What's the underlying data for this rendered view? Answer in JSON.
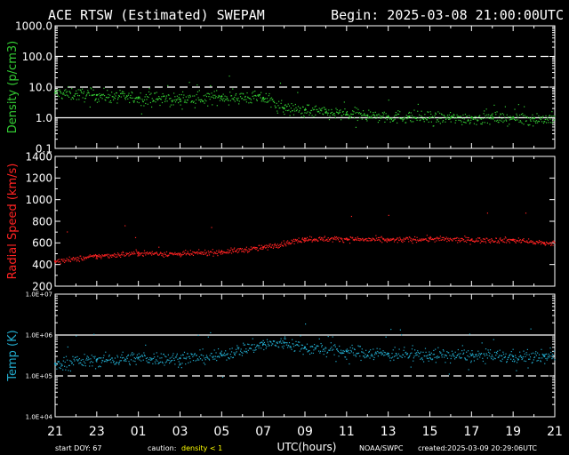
{
  "header": {
    "title": "ACE RTSW (Estimated) SWEPAM",
    "begin": "Begin: 2025-03-08 21:00:00UTC"
  },
  "footer": {
    "start_doy": "start DOY:  67",
    "caution_label": "caution:",
    "caution_value": "density < 1",
    "xlabel": "UTC(hours)",
    "credit": "NOAA/SWPC",
    "created": "created:2025-03-09 20:29:06UTC"
  },
  "colors": {
    "density": "#33cc33",
    "speed": "#ff2222",
    "temp": "#22aacc",
    "caution": "#ffff00"
  },
  "chart_data": [
    {
      "type": "scatter",
      "ylabel": "Density (p/cm3)",
      "yscale": "log",
      "ylim": [
        0.1,
        1000
      ],
      "yticks": [
        "0.1",
        "1.0",
        "10.0",
        "100.0",
        "1000.0"
      ],
      "reference_lines": [
        {
          "y": 1,
          "style": "solid"
        },
        {
          "y": 10,
          "style": "dashed"
        },
        {
          "y": 100,
          "style": "dashed"
        }
      ],
      "x_unit": "hours since 21:00 UTC",
      "points": [
        [
          0,
          6.5
        ],
        [
          2,
          5.5
        ],
        [
          4,
          4.5
        ],
        [
          6,
          4.0
        ],
        [
          8,
          5.0
        ],
        [
          10,
          4.5
        ],
        [
          11,
          2.0
        ],
        [
          12,
          1.8
        ],
        [
          13,
          1.5
        ],
        [
          14,
          1.3
        ],
        [
          15,
          1.2
        ],
        [
          16,
          1.1
        ],
        [
          17,
          1.1
        ],
        [
          18,
          1.0
        ],
        [
          19,
          1.0
        ],
        [
          20,
          1.0
        ],
        [
          21,
          1.0
        ],
        [
          22,
          1.0
        ],
        [
          23,
          0.95
        ]
      ]
    },
    {
      "type": "scatter",
      "ylabel": "Radial Speed (km/s)",
      "ylim": [
        200,
        1400
      ],
      "yticks": [
        "200",
        "400",
        "600",
        "800",
        "1000",
        "1200",
        "1400"
      ],
      "points": [
        [
          0,
          430
        ],
        [
          2,
          480
        ],
        [
          4,
          510
        ],
        [
          6,
          500
        ],
        [
          8,
          520
        ],
        [
          10,
          560
        ],
        [
          12,
          640
        ],
        [
          14,
          640
        ],
        [
          16,
          630
        ],
        [
          18,
          640
        ],
        [
          20,
          630
        ],
        [
          22,
          630
        ],
        [
          23.5,
          600
        ]
      ]
    },
    {
      "type": "scatter",
      "ylabel": "Temp (K)",
      "yscale": "log",
      "ylim": [
        10000,
        10000000
      ],
      "yticks": [
        "1.0E+04",
        "1.0E+05",
        "1.0E+06",
        "1.0E+07"
      ],
      "reference_lines": [
        {
          "y": 1000000,
          "style": "solid"
        },
        {
          "y": 100000,
          "style": "dashed"
        }
      ],
      "points": [
        [
          0,
          200000
        ],
        [
          2,
          250000
        ],
        [
          4,
          280000
        ],
        [
          6,
          270000
        ],
        [
          8,
          320000
        ],
        [
          10,
          600000
        ],
        [
          11,
          650000
        ],
        [
          12,
          500000
        ],
        [
          14,
          400000
        ],
        [
          16,
          350000
        ],
        [
          18,
          330000
        ],
        [
          20,
          320000
        ],
        [
          22,
          300000
        ],
        [
          23.5,
          300000
        ]
      ]
    }
  ],
  "x_axis": {
    "range_hours": [
      0,
      24
    ],
    "tick_labels": [
      "21",
      "23",
      "01",
      "03",
      "05",
      "07",
      "09",
      "11",
      "13",
      "15",
      "17",
      "19",
      "21"
    ]
  }
}
